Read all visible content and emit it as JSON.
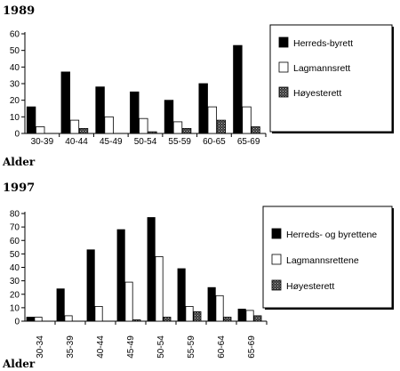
{
  "chart_data": [
    {
      "type": "bar",
      "title": "1989",
      "xlabel": "Alder",
      "ylabel": "",
      "ylim": [
        0,
        60
      ],
      "yticks": [
        0,
        10,
        20,
        30,
        40,
        50,
        60
      ],
      "categories": [
        "30-39",
        "40-44",
        "45-49",
        "50-54",
        "55-59",
        "60-65",
        "65-69"
      ],
      "tick_rotation": "horizontal",
      "legend_position": "right",
      "grid": false,
      "series": [
        {
          "name": "Herreds-byrett",
          "fill": "#000000",
          "values": [
            16,
            37,
            28,
            25,
            20,
            30,
            53
          ]
        },
        {
          "name": "Lagmannsrett",
          "fill": "#ffffff",
          "values": [
            4,
            8,
            10,
            9,
            7,
            16,
            16
          ]
        },
        {
          "name": "Høyesterett",
          "fill": "#555555",
          "values": [
            0,
            3,
            0,
            1,
            3,
            8,
            4
          ]
        }
      ]
    },
    {
      "type": "bar",
      "title": "1997",
      "xlabel": "Alder",
      "ylabel": "",
      "ylim": [
        0,
        80
      ],
      "yticks": [
        0,
        10,
        20,
        30,
        40,
        50,
        60,
        70,
        80
      ],
      "categories": [
        "30-34",
        "35-39",
        "40-44",
        "45-49",
        "50-54",
        "55-59",
        "60-64",
        "65-69"
      ],
      "tick_rotation": "vertical",
      "legend_position": "right",
      "grid": false,
      "series": [
        {
          "name": "Herreds- og byrettene",
          "fill": "#000000",
          "values": [
            3,
            24,
            53,
            68,
            77,
            39,
            25,
            9
          ]
        },
        {
          "name": "Lagmannsrettene",
          "fill": "#ffffff",
          "values": [
            3,
            4,
            11,
            29,
            48,
            11,
            19,
            8
          ]
        },
        {
          "name": "Høyesterett",
          "fill": "#555555",
          "values": [
            0,
            0,
            0,
            1,
            3,
            7,
            3,
            4
          ]
        }
      ]
    }
  ]
}
